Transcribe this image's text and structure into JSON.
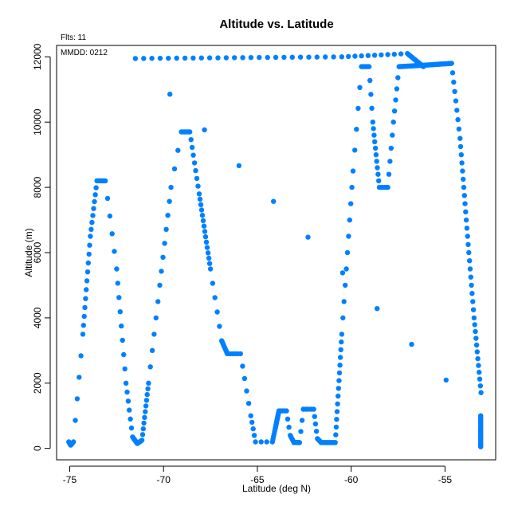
{
  "chart_data": {
    "type": "scatter",
    "title": "Altitude vs. Latitude",
    "xlabel": "Latitude (deg N)",
    "ylabel": "Altitude (m)",
    "xlim": [
      -75.7,
      -52.3
    ],
    "ylim": [
      -350,
      12350
    ],
    "xticks": [
      -75,
      -70,
      -65,
      -60,
      -55
    ],
    "yticks": [
      0,
      2000,
      4000,
      6000,
      8000,
      10000,
      12000
    ],
    "grid": false,
    "annotations": {
      "flts": "Flts: 11",
      "mmdd": "MMDD: 0212"
    },
    "point_color": "#0080FF",
    "path_vertices": [
      [
        -75.05,
        200
      ],
      [
        -74.95,
        100
      ],
      [
        -74.8,
        200
      ],
      [
        -74.3,
        3500
      ],
      [
        -73.9,
        6500
      ],
      [
        -73.55,
        8200
      ],
      [
        -73.1,
        8200
      ],
      [
        -72.5,
        5500
      ],
      [
        -72.0,
        2000
      ],
      [
        -71.65,
        350
      ],
      [
        -71.4,
        150
      ],
      [
        -71.15,
        250
      ],
      [
        -70.8,
        2000
      ],
      [
        -70.2,
        5000
      ],
      [
        -69.6,
        8000
      ],
      [
        -69.05,
        9700
      ],
      [
        -68.6,
        9700
      ],
      [
        -68.1,
        7800
      ],
      [
        -67.5,
        5500
      ],
      [
        -66.9,
        3300
      ],
      [
        -66.6,
        2900
      ],
      [
        -65.9,
        2900
      ],
      [
        -65.35,
        1000
      ],
      [
        -65.1,
        200
      ],
      [
        -64.2,
        200
      ],
      [
        -64.05,
        600
      ],
      [
        -63.85,
        1150
      ],
      [
        -63.45,
        1150
      ],
      [
        -63.25,
        400
      ],
      [
        -63.05,
        180
      ],
      [
        -62.75,
        180
      ],
      [
        -62.55,
        1200
      ],
      [
        -62.0,
        1200
      ],
      [
        -61.8,
        300
      ],
      [
        -61.6,
        180
      ],
      [
        -60.85,
        180
      ],
      [
        -60.5,
        3500
      ],
      [
        -59.9,
        8500
      ],
      [
        -59.45,
        11700
      ],
      [
        -59.05,
        11700
      ],
      [
        -58.85,
        10000
      ],
      [
        -58.5,
        8000
      ],
      [
        -58.05,
        8000
      ],
      [
        -57.75,
        10000
      ],
      [
        -57.45,
        11700
      ],
      [
        -55.95,
        11750
      ],
      [
        -54.65,
        11800
      ],
      [
        -54.2,
        9500
      ],
      [
        -53.8,
        6500
      ],
      [
        -53.45,
        4000
      ],
      [
        -53.05,
        1500
      ],
      [
        -53.1,
        50
      ],
      [
        -53.1,
        1000
      ],
      [
        -71.5,
        11950
      ],
      [
        -60.5,
        12000
      ],
      [
        -57.0,
        12100
      ],
      [
        -56.15,
        11700
      ]
    ],
    "path_segments_pts": [
      6,
      5,
      5,
      11,
      8,
      8,
      5,
      8,
      6,
      10,
      6,
      10,
      6,
      7,
      3,
      5,
      8,
      14,
      5,
      10,
      5,
      5,
      4,
      3,
      5,
      14,
      4,
      3,
      5,
      10,
      3,
      4,
      4,
      6,
      14,
      14,
      10,
      5,
      5,
      4,
      10,
      5,
      5,
      5,
      30,
      30,
      8,
      12,
      10,
      12,
      10,
      20,
      10,
      25,
      10,
      20
    ],
    "path_break_after_index": 50
  }
}
